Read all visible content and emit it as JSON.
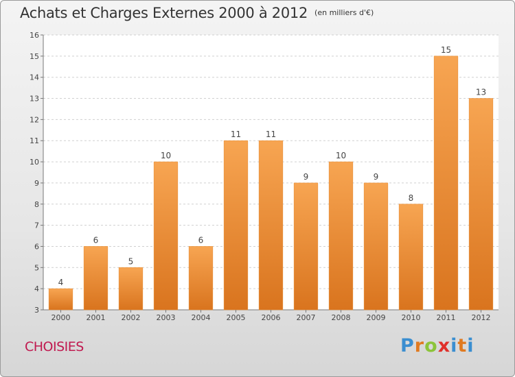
{
  "header": {
    "title": "Achats et Charges Externes 2000 à 2012",
    "unit": "(en milliers d'€)"
  },
  "footer": {
    "city": "CHOISIES",
    "logo": "Proxiti"
  },
  "colors": {
    "bar_light": "#f7a552",
    "bar_dark": "#d9741e",
    "city": "#c0194f",
    "grid": "#cfcfcf",
    "plot_bg": "#ffffff"
  },
  "chart_data": {
    "type": "bar",
    "title": "Achats et Charges Externes 2000 à 2012",
    "subtitle": "(en milliers d'€)",
    "xlabel": "",
    "ylabel": "",
    "categories": [
      "2000",
      "2001",
      "2002",
      "2003",
      "2004",
      "2005",
      "2006",
      "2007",
      "2008",
      "2009",
      "2010",
      "2011",
      "2012"
    ],
    "values": [
      4,
      6,
      5,
      10,
      6,
      11,
      11,
      9,
      10,
      9,
      8,
      15,
      13
    ],
    "data_labels": [
      "4",
      "6",
      "5",
      "10",
      "6",
      "11",
      "11",
      "9",
      "10",
      "9",
      "8",
      "15",
      "13"
    ],
    "ylim": [
      3,
      16
    ],
    "yticks": [
      "3",
      "4",
      "5",
      "6",
      "7",
      "8",
      "9",
      "10",
      "11",
      "12",
      "13",
      "14",
      "15",
      "16"
    ],
    "grid": true,
    "legend": "none"
  }
}
